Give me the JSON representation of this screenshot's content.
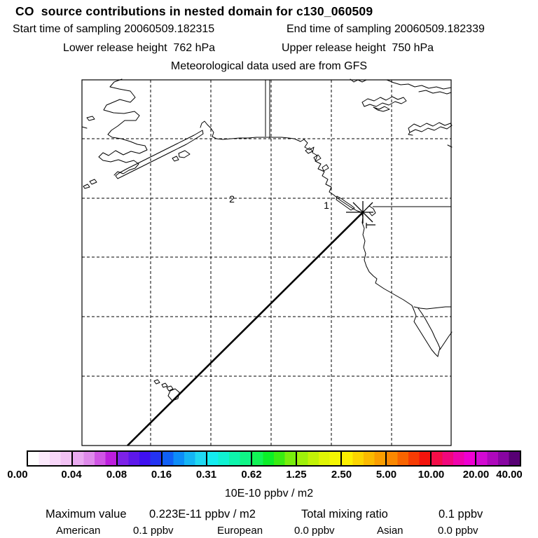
{
  "header": {
    "title": "CO  source contributions in nested domain for c130_060509",
    "start_time": "Start time of sampling 20060509.182315",
    "end_time": "End time of sampling 20060509.182339",
    "lower_release": "Lower release height  762 hPa",
    "upper_release": "Upper release height  750 hPa",
    "met_source": "Meteorological data used are from GFS"
  },
  "map": {
    "day_marker_1": "1",
    "day_marker_2": "2"
  },
  "colorbar": {
    "units": "10E-10 ppbv / m2",
    "tick_labels": [
      "0.00",
      "0.04",
      "0.08",
      "0.16",
      "0.31",
      "0.62",
      "1.25",
      "2.50",
      "5.00",
      "10.00",
      "20.00",
      "40.00"
    ],
    "segments": [
      [
        "#ffffff",
        "#fbe9fb",
        "#f7d6f8",
        "#f2c2f4"
      ],
      [
        "#eaaaf1",
        "#df8aeb",
        "#d055e4",
        "#bd1edd"
      ],
      [
        "#7d22e8",
        "#5d18ea",
        "#3f10f0",
        "#2433f2"
      ],
      [
        "#1060f6",
        "#0d8df8",
        "#15b5f5",
        "#20d8f2"
      ],
      [
        "#14ecf0",
        "#10f2d2",
        "#0ef4ac",
        "#10f586"
      ],
      [
        "#12f356",
        "#0cee28",
        "#3aec12",
        "#78ee0c"
      ],
      [
        "#9ff00a",
        "#c2f207",
        "#dff405",
        "#f4f603"
      ],
      [
        "#fdf000",
        "#fcd500",
        "#fbba00",
        "#fa9e00"
      ],
      [
        "#fa8800",
        "#f86400",
        "#f63c04",
        "#f4140c"
      ],
      [
        "#f30e48",
        "#f1077c",
        "#ef03ac",
        "#ee00d2"
      ],
      [
        "#d30ad2",
        "#ae08bc",
        "#8805a2",
        "#570074"
      ]
    ]
  },
  "footer": {
    "maximum_label": "Maximum value",
    "maximum_value": "0.223E-11 ppbv / m2",
    "total_label": "Total mixing ratio",
    "total_value": "0.1 ppbv",
    "regions": [
      {
        "name": "American",
        "value": "0.1 ppbv"
      },
      {
        "name": "European",
        "value": "0.0 ppbv"
      },
      {
        "name": "Asian",
        "value": "0.0 ppbv"
      }
    ]
  },
  "chart_data": {
    "type": "heatmap",
    "title": "CO  source contributions in nested domain for c130_060509",
    "subtitle": "Meteorological data used are from GFS",
    "sampling": {
      "start": "20060509.182315",
      "end": "20060509.182339"
    },
    "release_heights_hPa": {
      "lower": 762,
      "upper": 750
    },
    "colorbar_scale_values": [
      0.0,
      0.04,
      0.08,
      0.16,
      0.31,
      0.62,
      1.25,
      2.5,
      5.0,
      10.0,
      20.0,
      40.0
    ],
    "colorbar_units": "10E-10 ppbv / m2",
    "maximum_value": "0.223E-11 ppbv / m2",
    "total_mixing_ratio_ppbv": 0.1,
    "contributions_ppbv": {
      "American": 0.1,
      "European": 0.0,
      "Asian": 0.0
    },
    "trajectory_day_markers": [
      "1",
      "2"
    ],
    "legend_position": "bottom",
    "grid": "dashed lat/lon graticule"
  }
}
